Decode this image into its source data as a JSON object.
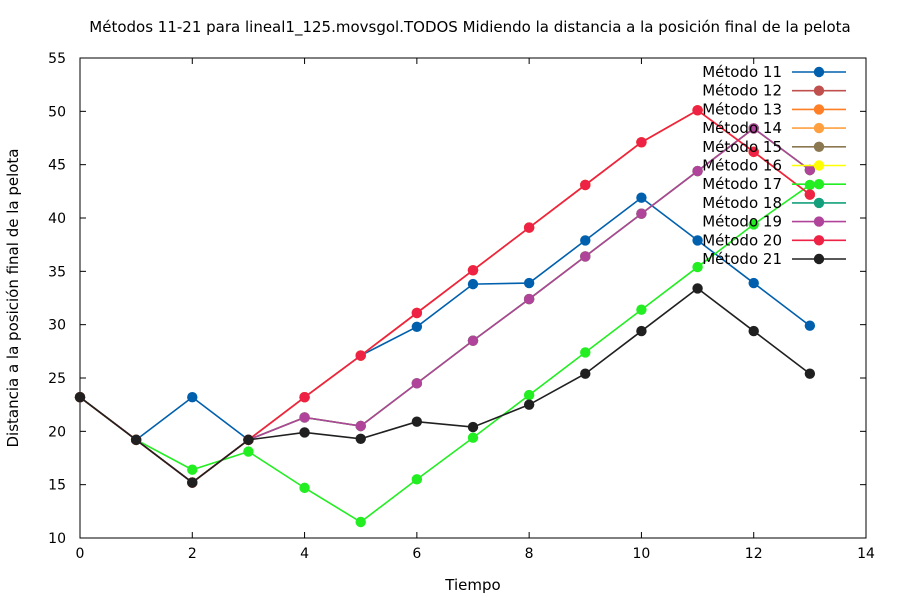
{
  "chart_data": {
    "type": "line",
    "title": "Métodos 11-21 para lineal1_125.movsgol.TODOS Midiendo la distancia a la posición final de la pelota",
    "xlabel": "Tiempo",
    "ylabel": "Distancia a la posición final de la pelota",
    "xlim": [
      0,
      14
    ],
    "ylim": [
      10,
      55
    ],
    "xticks": [
      0,
      2,
      4,
      6,
      8,
      10,
      12,
      14
    ],
    "yticks": [
      10,
      15,
      20,
      25,
      30,
      35,
      40,
      45,
      50,
      55
    ],
    "grid": false,
    "legend": "top-right",
    "series": [
      {
        "name": "Método 11",
        "color": "#0060ad",
        "x": [
          0,
          1,
          2,
          3,
          4,
          5,
          6,
          7,
          8,
          9,
          10,
          11,
          12,
          13
        ],
        "y": [
          23.2,
          19.2,
          23.2,
          19.2,
          23.2,
          27.1,
          29.8,
          33.8,
          33.9,
          37.9,
          41.9,
          37.9,
          33.9,
          29.9
        ]
      },
      {
        "name": "Método 12",
        "color": "#c0504d",
        "x": [
          0,
          1,
          2,
          3,
          4,
          5,
          6,
          7,
          8,
          9,
          10,
          11,
          12,
          13
        ],
        "y": [
          23.2,
          19.2,
          15.2,
          19.2,
          23.2,
          27.1,
          31.1,
          35.1,
          39.1,
          43.1,
          47.1,
          50.1,
          46.2,
          42.2
        ]
      },
      {
        "name": "Método 13",
        "color": "#ff7f27",
        "x": [
          0,
          1,
          2,
          3,
          4,
          5,
          6,
          7,
          8,
          9,
          10,
          11,
          12,
          13
        ],
        "y": [
          23.2,
          19.2,
          15.2,
          19.2,
          23.2,
          27.1,
          31.1,
          35.1,
          39.1,
          43.1,
          47.1,
          50.1,
          46.2,
          42.2
        ]
      },
      {
        "name": "Método 14",
        "color": "#ffa040",
        "x": [
          0,
          1,
          2,
          3,
          4,
          5,
          6,
          7,
          8,
          9,
          10,
          11,
          12,
          13
        ],
        "y": [
          23.2,
          19.2,
          15.2,
          19.2,
          23.2,
          27.1,
          31.1,
          35.1,
          39.1,
          43.1,
          47.1,
          50.1,
          46.2,
          42.2
        ]
      },
      {
        "name": "Método 15",
        "color": "#8c7850",
        "x": [
          0,
          1,
          2,
          3,
          4,
          5,
          6,
          7,
          8,
          9,
          10,
          11,
          12,
          13
        ],
        "y": [
          23.2,
          19.2,
          15.2,
          19.2,
          21.3,
          20.5,
          24.5,
          28.5,
          32.4,
          36.4,
          40.4,
          44.4,
          48.4,
          44.5
        ]
      },
      {
        "name": "Método 16",
        "color": "#ffff00",
        "x": [
          0,
          1,
          2,
          3,
          4,
          5,
          6,
          7,
          8,
          9,
          10,
          11,
          12,
          13
        ],
        "y": [
          23.2,
          19.2,
          15.2,
          19.2,
          21.3,
          20.5,
          24.5,
          28.5,
          32.4,
          36.4,
          40.4,
          44.4,
          48.4,
          44.5
        ]
      },
      {
        "name": "Método 17",
        "color": "#22ee22",
        "x": [
          0,
          1,
          2,
          3,
          4,
          5,
          6,
          7,
          8,
          9,
          10,
          11,
          12,
          13
        ],
        "y": [
          23.2,
          19.2,
          16.4,
          18.1,
          14.7,
          11.5,
          15.5,
          19.4,
          23.4,
          27.4,
          31.4,
          35.4,
          39.4,
          43.1
        ]
      },
      {
        "name": "Método 18",
        "color": "#14a07c",
        "x": [
          0,
          1,
          2,
          3,
          4,
          5,
          6,
          7,
          8,
          9,
          10,
          11,
          12,
          13
        ],
        "y": [
          23.2,
          19.2,
          15.2,
          19.2,
          21.3,
          20.5,
          24.5,
          28.5,
          32.4,
          36.4,
          40.4,
          44.4,
          48.4,
          44.5
        ]
      },
      {
        "name": "Método 19",
        "color": "#b0449a",
        "x": [
          0,
          1,
          2,
          3,
          4,
          5,
          6,
          7,
          8,
          9,
          10,
          11,
          12,
          13
        ],
        "y": [
          23.2,
          19.2,
          15.2,
          19.2,
          21.3,
          20.5,
          24.5,
          28.5,
          32.4,
          36.4,
          40.4,
          44.4,
          48.4,
          44.5
        ]
      },
      {
        "name": "Método 20",
        "color": "#ee2244",
        "x": [
          0,
          1,
          2,
          3,
          4,
          5,
          6,
          7,
          8,
          9,
          10,
          11,
          12,
          13
        ],
        "y": [
          23.2,
          19.2,
          15.2,
          19.2,
          23.2,
          27.1,
          31.1,
          35.1,
          39.1,
          43.1,
          47.1,
          50.1,
          46.2,
          42.2
        ]
      },
      {
        "name": "Método 21",
        "color": "#202020",
        "x": [
          0,
          1,
          2,
          3,
          4,
          5,
          6,
          7,
          8,
          9,
          10,
          11,
          12,
          13
        ],
        "y": [
          23.2,
          19.2,
          15.2,
          19.2,
          19.9,
          19.3,
          20.9,
          20.4,
          22.5,
          25.4,
          29.4,
          33.4,
          29.4,
          25.4
        ]
      }
    ]
  }
}
